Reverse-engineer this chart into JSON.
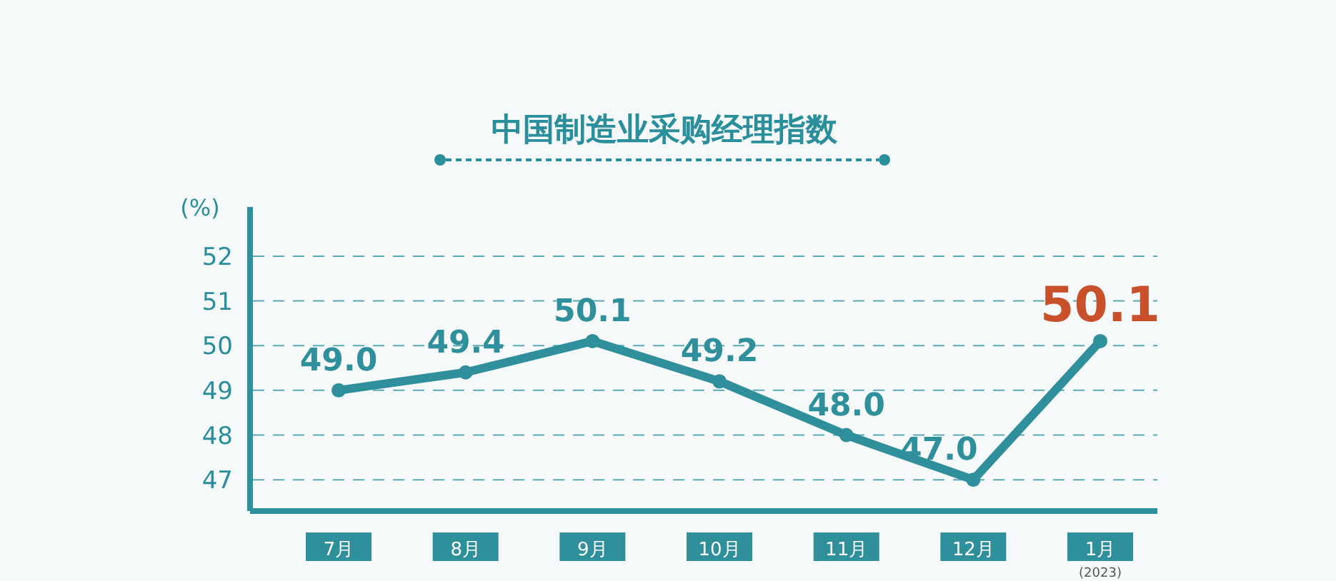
{
  "chart_data": {
    "type": "line",
    "title": "中国制造业采购经理指数",
    "ylabel": "(%)",
    "categories": [
      "7月",
      "8月",
      "9月",
      "10月",
      "11月",
      "12月",
      "1月"
    ],
    "series": [
      {
        "color": "#2f8f9b",
        "values": [
          49.0,
          49.4,
          50.1,
          49.2,
          48.0,
          47.0,
          50.1
        ]
      }
    ],
    "value_labels": [
      "49.0",
      "49.4",
      "50.1",
      "49.2",
      "48.0",
      "47.0",
      null
    ],
    "annotations": [
      {
        "text": "50.1",
        "x": "1月",
        "y": 50.1
      },
      "(2023)"
    ],
    "ylim": [
      46.3,
      53.1
    ],
    "yticks": [
      47,
      48,
      49,
      50,
      51,
      52
    ],
    "grid": "y",
    "line_style": "solid",
    "marker": "circle"
  }
}
